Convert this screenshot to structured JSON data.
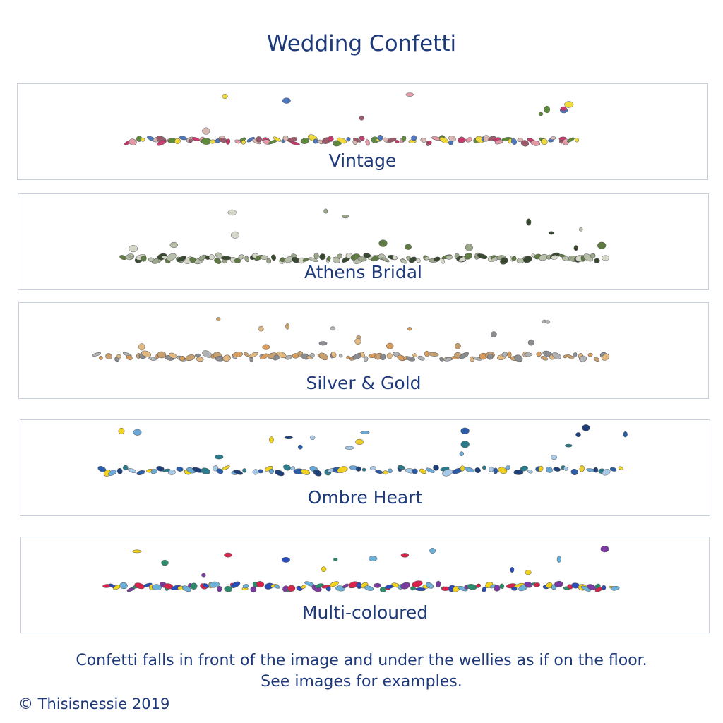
{
  "title": "Wedding Confetti",
  "panels": [
    {
      "label": "Vintage",
      "colors": [
        "#c73a6b",
        "#e59aa8",
        "#5f8a3c",
        "#f0d93a",
        "#4a78c0",
        "#d8b8b0",
        "#9a5a6a"
      ]
    },
    {
      "label": "Athens Bridal",
      "colors": [
        "#5f7a42",
        "#b8bfaa",
        "#9aa58a",
        "#3a4a32",
        "#d5d8c8"
      ]
    },
    {
      "label": "Silver & Gold",
      "colors": [
        "#b0b2b4",
        "#d89c5c",
        "#c8a070",
        "#8a8c90",
        "#e0b880"
      ]
    },
    {
      "label": "Ombre Heart",
      "colors": [
        "#2a5ca8",
        "#f0d020",
        "#6aa8d8",
        "#1d3f7a",
        "#2a7c8c",
        "#a8c8e8"
      ]
    },
    {
      "label": "Multi-coloured",
      "colors": [
        "#d8234a",
        "#2a4cb8",
        "#f2d21a",
        "#6ab0d8",
        "#7a3aa0",
        "#2a8c6a"
      ]
    }
  ],
  "footer": {
    "line1": "Confetti falls in front of the image and under the wellies as if on the floor.",
    "line2": "See images for examples."
  },
  "copyright": "© Thisisnessie 2019"
}
